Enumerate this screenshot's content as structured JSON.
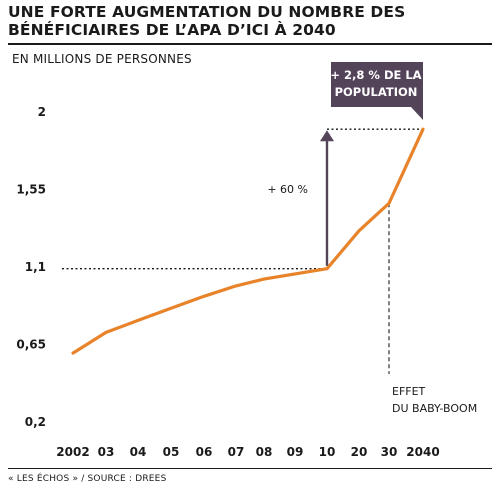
{
  "header": {
    "title": "UNE FORTE AUGMENTATION DU NOMBRE DES BÉNÉFICIAIRES DE L’APA D’ICI À 2040",
    "subtitle": "EN MILLIONS DE PERSONNES"
  },
  "footer": {
    "source": "« LES ÉCHOS » / SOURCE : DREES"
  },
  "chart_data": {
    "type": "line",
    "title": "UNE FORTE AUGMENTATION DU NOMBRE DES BÉNÉFICIAIRES DE L’APA D’ICI À 2040",
    "ylabel": "EN MILLIONS DE PERSONNES",
    "xlabel": "",
    "categories": [
      "2002",
      "03",
      "04",
      "05",
      "06",
      "07",
      "08",
      "09",
      "10",
      "20",
      "30",
      "2040"
    ],
    "series": [
      {
        "values": [
          0.6,
          0.72,
          0.79,
          0.86,
          0.93,
          0.99,
          1.03,
          1.06,
          1.09,
          1.31,
          1.47,
          1.9
        ]
      }
    ],
    "yticks": [
      "0,2",
      "0,65",
      "1,1",
      "1,55",
      "2"
    ],
    "ylim": [
      0.2,
      2.0
    ],
    "grid": false,
    "line_color": "#e8832a",
    "arrow_color": "#54445a",
    "annotations": {
      "increase": "+ 60 %",
      "callout_line1": "+ 2,8 % DE LA",
      "callout_line2": "POPULATION",
      "baby_boom_line1": "EFFET",
      "baby_boom_line2": "DU BABY-BOOM"
    }
  }
}
